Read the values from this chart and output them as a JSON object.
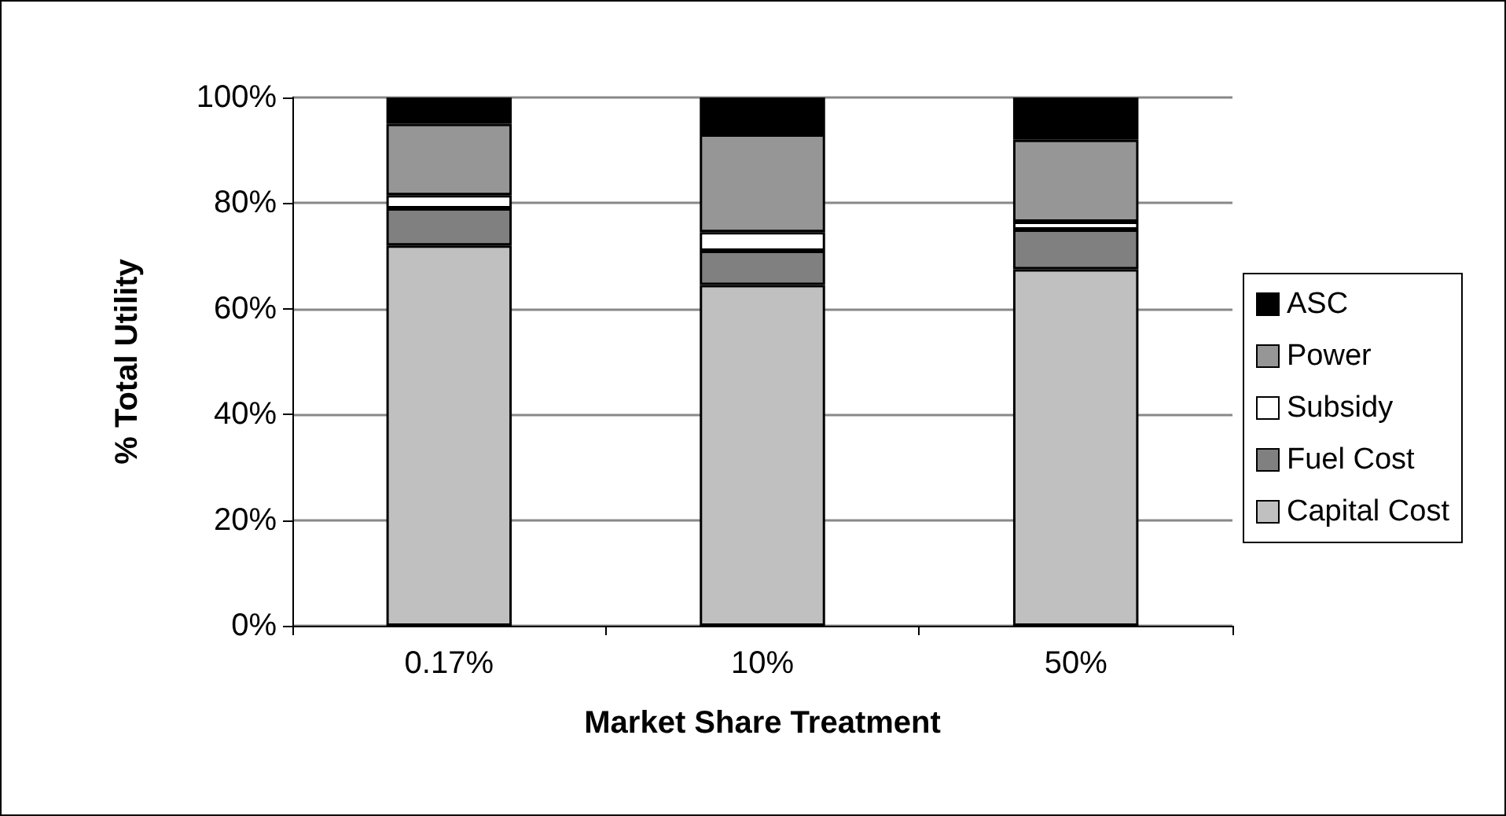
{
  "chart_data": {
    "type": "bar",
    "stacked": true,
    "xlabel": "Market Share Treatment",
    "ylabel": "% Total Utility",
    "categories": [
      "0.17%",
      "10%",
      "50%"
    ],
    "series": [
      {
        "name": "Capital Cost",
        "color": "#c0c0c0",
        "values": [
          72,
          64.5,
          67.5
        ]
      },
      {
        "name": "Fuel Cost",
        "color": "#808080",
        "values": [
          7,
          6.5,
          7.5
        ]
      },
      {
        "name": "Subsidy",
        "color": "#ffffff",
        "values": [
          2.5,
          3.5,
          1.5
        ]
      },
      {
        "name": "Power",
        "color": "#969696",
        "values": [
          13.5,
          18.5,
          15.5
        ]
      },
      {
        "name": "ASC",
        "color": "#000000",
        "values": [
          5,
          7,
          8
        ]
      }
    ],
    "ylim": [
      0,
      100
    ],
    "yticks": [
      {
        "value": 0,
        "label": "0%"
      },
      {
        "value": 20,
        "label": "20%"
      },
      {
        "value": 40,
        "label": "40%"
      },
      {
        "value": 60,
        "label": "60%"
      },
      {
        "value": 80,
        "label": "80%"
      },
      {
        "value": 100,
        "label": "100%"
      }
    ],
    "grid": "y",
    "legend": "right"
  }
}
